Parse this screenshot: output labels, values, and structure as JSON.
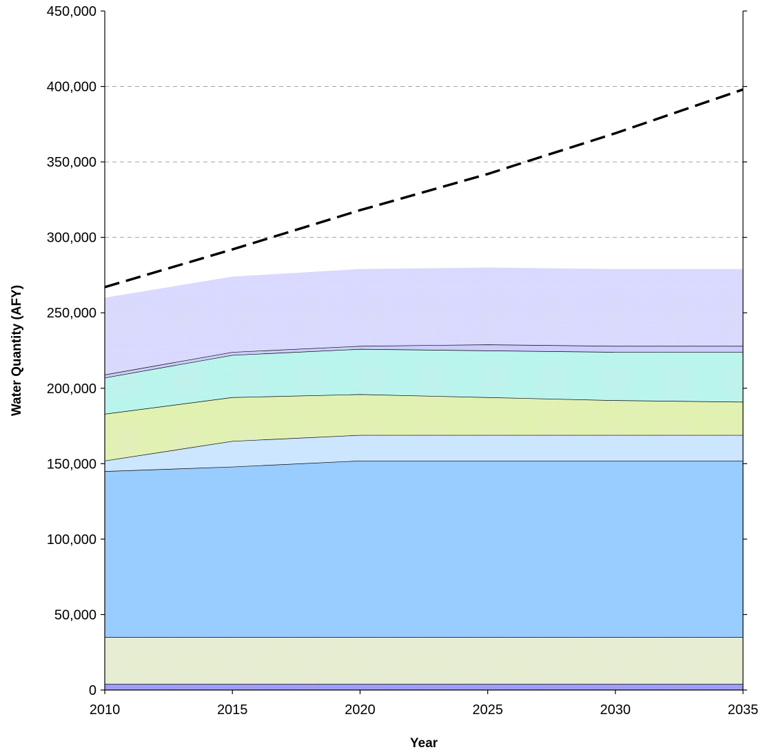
{
  "chart_data": {
    "type": "area",
    "title": "",
    "xlabel": "Year",
    "ylabel": "Water Quantity (AFY)",
    "x": [
      2010,
      2015,
      2020,
      2025,
      2030,
      2035
    ],
    "x_tick_labels": [
      "2010",
      "2015",
      "2020",
      "2025",
      "2030",
      "2035"
    ],
    "xlim": [
      2010,
      2035
    ],
    "ylim": [
      0,
      450000
    ],
    "y_ticks": [
      0,
      50000,
      100000,
      150000,
      200000,
      250000,
      300000,
      350000,
      400000,
      450000
    ],
    "y_tick_labels": [
      "0",
      "50,000",
      "100,000",
      "150,000",
      "200,000",
      "250,000",
      "300,000",
      "350,000",
      "400,000",
      "450,000"
    ],
    "grid": "horizontal dashed gridlines",
    "legend": "none",
    "stacked_series": [
      {
        "values": [
          4000,
          4000,
          4000,
          4000,
          4000,
          4000
        ],
        "color": "#9999ff",
        "pattern": "dots"
      },
      {
        "values": [
          31000,
          31000,
          31000,
          31000,
          31000,
          31000
        ],
        "color": "#e6ecd0",
        "pattern": "dots"
      },
      {
        "values": [
          110000,
          113000,
          117000,
          117000,
          117000,
          117000
        ],
        "color": "#99ccff",
        "pattern": "solid"
      },
      {
        "values": [
          7000,
          17000,
          17000,
          17000,
          17000,
          17000
        ],
        "color": "#cce6ff",
        "pattern": "solid"
      },
      {
        "values": [
          31000,
          29000,
          27000,
          25000,
          23000,
          22000
        ],
        "color": "#e0f0b0",
        "pattern": "dots"
      },
      {
        "values": [
          24000,
          28000,
          30000,
          31000,
          32000,
          33000
        ],
        "color": "#b8f4ec",
        "pattern": "dots"
      },
      {
        "values": [
          2000,
          2000,
          2000,
          4000,
          4000,
          4000
        ],
        "color": "#ccccff",
        "pattern": "solid"
      },
      {
        "values": [
          51000,
          50000,
          51000,
          51000,
          51000,
          51000
        ],
        "color": "#d8d8ff",
        "pattern": "dots"
      }
    ],
    "line_series": [
      {
        "values": [
          267000,
          292000,
          318000,
          342000,
          369000,
          398000
        ],
        "style": "dashed",
        "color": "#000000"
      }
    ]
  }
}
